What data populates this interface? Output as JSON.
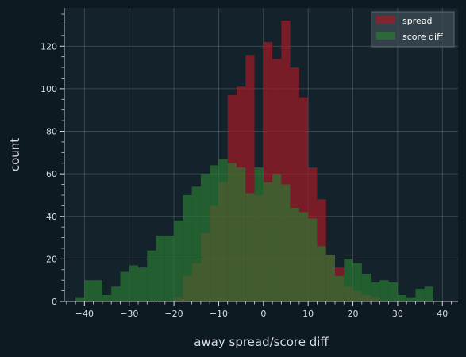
{
  "chart_data": {
    "type": "histogram",
    "xlabel": "away spread/score diff",
    "ylabel": "count",
    "xlim": [
      -44.5,
      43.5
    ],
    "ylim": [
      0,
      138
    ],
    "xticks": [
      -40,
      -30,
      -20,
      -10,
      0,
      10,
      20,
      30,
      40
    ],
    "yticks": [
      0,
      20,
      40,
      60,
      80,
      100,
      120
    ],
    "grid": true,
    "legend_position": "top-right",
    "bin_width": 2,
    "series": [
      {
        "name": "spread",
        "color": "#a01b26",
        "bins": [
          {
            "x0": -20,
            "count": 2
          },
          {
            "x0": -18,
            "count": 12
          },
          {
            "x0": -16,
            "count": 18
          },
          {
            "x0": -14,
            "count": 32
          },
          {
            "x0": -12,
            "count": 45
          },
          {
            "x0": -10,
            "count": 56
          },
          {
            "x0": -8,
            "count": 97
          },
          {
            "x0": -6,
            "count": 101
          },
          {
            "x0": -4,
            "count": 116
          },
          {
            "x0": -2,
            "count": 50
          },
          {
            "x0": 0,
            "count": 122
          },
          {
            "x0": 2,
            "count": 114
          },
          {
            "x0": 4,
            "count": 132
          },
          {
            "x0": 6,
            "count": 110
          },
          {
            "x0": 8,
            "count": 96
          },
          {
            "x0": 10,
            "count": 63
          },
          {
            "x0": 12,
            "count": 48
          },
          {
            "x0": 14,
            "count": 22
          },
          {
            "x0": 16,
            "count": 16
          },
          {
            "x0": 18,
            "count": 7
          },
          {
            "x0": 20,
            "count": 5
          },
          {
            "x0": 22,
            "count": 3
          },
          {
            "x0": 24,
            "count": 2
          }
        ]
      },
      {
        "name": "score diff",
        "color": "#2b7a34",
        "bins": [
          {
            "x0": -42,
            "count": 2
          },
          {
            "x0": -40,
            "count": 10
          },
          {
            "x0": -38,
            "count": 10
          },
          {
            "x0": -36,
            "count": 3
          },
          {
            "x0": -34,
            "count": 7
          },
          {
            "x0": -32,
            "count": 14
          },
          {
            "x0": -30,
            "count": 17
          },
          {
            "x0": -28,
            "count": 16
          },
          {
            "x0": -26,
            "count": 24
          },
          {
            "x0": -24,
            "count": 31
          },
          {
            "x0": -22,
            "count": 31
          },
          {
            "x0": -20,
            "count": 38
          },
          {
            "x0": -18,
            "count": 50
          },
          {
            "x0": -16,
            "count": 54
          },
          {
            "x0": -14,
            "count": 60
          },
          {
            "x0": -12,
            "count": 64
          },
          {
            "x0": -10,
            "count": 67
          },
          {
            "x0": -8,
            "count": 65
          },
          {
            "x0": -6,
            "count": 63
          },
          {
            "x0": -4,
            "count": 51
          },
          {
            "x0": -2,
            "count": 63
          },
          {
            "x0": 0,
            "count": 56
          },
          {
            "x0": 2,
            "count": 60
          },
          {
            "x0": 4,
            "count": 55
          },
          {
            "x0": 6,
            "count": 44
          },
          {
            "x0": 8,
            "count": 42
          },
          {
            "x0": 10,
            "count": 39
          },
          {
            "x0": 12,
            "count": 26
          },
          {
            "x0": 14,
            "count": 22
          },
          {
            "x0": 16,
            "count": 12
          },
          {
            "x0": 18,
            "count": 20
          },
          {
            "x0": 20,
            "count": 18
          },
          {
            "x0": 22,
            "count": 13
          },
          {
            "x0": 24,
            "count": 9
          },
          {
            "x0": 26,
            "count": 10
          },
          {
            "x0": 28,
            "count": 9
          },
          {
            "x0": 30,
            "count": 3
          },
          {
            "x0": 32,
            "count": 2
          },
          {
            "x0": 34,
            "count": 6
          },
          {
            "x0": 36,
            "count": 7
          }
        ]
      }
    ]
  }
}
